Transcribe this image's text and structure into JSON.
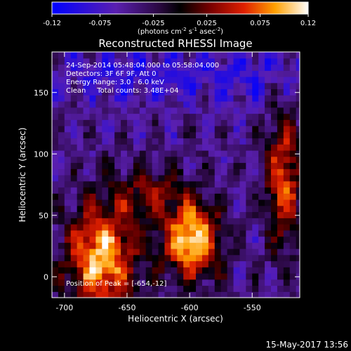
{
  "chart_data": {
    "type": "heatmap",
    "title": "Reconstructed RHESSI Image",
    "xlabel": "Heliocentric X (arcsec)",
    "ylabel": "Heliocentric Y (arcsec)",
    "xlim": [
      -710,
      -512
    ],
    "ylim": [
      -17,
      183
    ],
    "x_ticks": [
      -700,
      -650,
      -600,
      -550
    ],
    "x_tick_labels": [
      "-700",
      "-650",
      "-600",
      "-550"
    ],
    "y_ticks": [
      0,
      50,
      100,
      150
    ],
    "y_tick_labels": [
      "0",
      "50",
      "100",
      "150"
    ],
    "colorbar": {
      "range": [
        -0.12,
        0.12
      ],
      "ticks": [
        -0.12,
        -0.075,
        -0.025,
        0.025,
        0.075,
        0.12
      ],
      "tick_labels": [
        "-0.12",
        "-0.075",
        "-0.025",
        "0.025",
        "0.075",
        "0.12"
      ],
      "units_label": "(photons cm",
      "units_sup1": "-2",
      "units_mid": " s",
      "units_sup2": "-1",
      "units_end": " asec",
      "units_sup3": "-2",
      "units_close": ")"
    },
    "info_lines": [
      "24-Sep-2014 05:48:04.000 to 05:58:04.000",
      "Detectors: 3F 6F 9F, Att 0",
      "Energy Range: 3.0 - 6.0 keV",
      "Clean     Total counts: 3.48E+04"
    ],
    "peak_label": "Position of Peak = [-654,-12]",
    "peak_position": [
      -654,
      -12
    ],
    "grid": false
  },
  "timestamp": "15-May-2017 13:56"
}
